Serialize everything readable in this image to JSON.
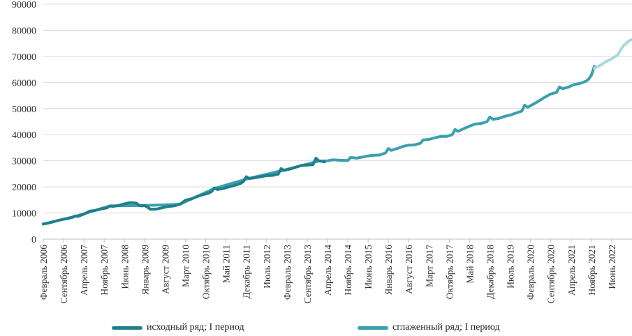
{
  "chart_data": {
    "type": "line",
    "title": "",
    "xlabel": "",
    "ylabel": "",
    "ylim": [
      0,
      90000
    ],
    "yticks": [
      "0",
      "10000",
      "20000",
      "30000",
      "40000",
      "50000",
      "60000",
      "70000",
      "80000",
      "90000"
    ],
    "x_start": "Февраль 2006",
    "x_end": "Декабрь 2022",
    "x_tick_labels": [
      {
        "label": "Февраль 2006",
        "date": "2006-02"
      },
      {
        "label": "Сентябрь 2006",
        "date": "2006-09"
      },
      {
        "label": "Апрель 2007",
        "date": "2007-04"
      },
      {
        "label": "Ноябрь 2007",
        "date": "2007-11"
      },
      {
        "label": "Июнь 2008",
        "date": "2008-06"
      },
      {
        "label": "Январь 2009",
        "date": "2009-01"
      },
      {
        "label": "Август 2009",
        "date": "2009-08"
      },
      {
        "label": "Март 2010",
        "date": "2010-03"
      },
      {
        "label": "Октябрь 2010",
        "date": "2010-10"
      },
      {
        "label": "Май 2011",
        "date": "2011-05"
      },
      {
        "label": "Декабрь 2011",
        "date": "2011-12"
      },
      {
        "label": "Июль 2012",
        "date": "2012-07"
      },
      {
        "label": "Февраль 2013",
        "date": "2013-02"
      },
      {
        "label": "Сентябрь 2013",
        "date": "2013-09"
      },
      {
        "label": "Апрель 2014",
        "date": "2014-04"
      },
      {
        "label": "Ноябрь 2014",
        "date": "2014-11"
      },
      {
        "label": "Июнь 2015",
        "date": "2015-06"
      },
      {
        "label": "Январь 2016",
        "date": "2016-01"
      },
      {
        "label": "Август 2016",
        "date": "2016-08"
      },
      {
        "label": "Март 2017",
        "date": "2017-03"
      },
      {
        "label": "Октябрь 2017",
        "date": "2017-10"
      },
      {
        "label": "Май 2018",
        "date": "2018-05"
      },
      {
        "label": "Декабрь 2018",
        "date": "2018-12"
      },
      {
        "label": "Июль 2019",
        "date": "2019-07"
      },
      {
        "label": "Февраль 2020",
        "date": "2020-02"
      },
      {
        "label": "Сентябрь 2020",
        "date": "2020-09"
      },
      {
        "label": "Апрель 2021",
        "date": "2021-04"
      },
      {
        "label": "Ноябрь 2021",
        "date": "2021-11"
      },
      {
        "label": "Июнь 2022",
        "date": "2022-06"
      }
    ],
    "grid": "horizontal",
    "legend_position": "bottom",
    "series": [
      {
        "name": "исходный ряд; I период",
        "color": "#1f7f8c",
        "points": [
          [
            "2006-02",
            5800
          ],
          [
            "2006-04",
            6200
          ],
          [
            "2006-06",
            6800
          ],
          [
            "2006-08",
            7400
          ],
          [
            "2006-10",
            7800
          ],
          [
            "2006-12",
            8300
          ],
          [
            "2007-01",
            8900
          ],
          [
            "2007-02",
            8700
          ],
          [
            "2007-04",
            9600
          ],
          [
            "2007-06",
            10700
          ],
          [
            "2007-08",
            11000
          ],
          [
            "2007-10",
            11600
          ],
          [
            "2007-12",
            12000
          ],
          [
            "2008-01",
            12700
          ],
          [
            "2008-02",
            12500
          ],
          [
            "2008-04",
            12900
          ],
          [
            "2008-06",
            13500
          ],
          [
            "2008-08",
            14000
          ],
          [
            "2008-10",
            13800
          ],
          [
            "2008-11",
            13000
          ],
          [
            "2008-12",
            12700
          ],
          [
            "2009-01",
            12900
          ],
          [
            "2009-03",
            11400
          ],
          [
            "2009-05",
            11500
          ],
          [
            "2009-07",
            12000
          ],
          [
            "2009-09",
            12500
          ],
          [
            "2009-11",
            12700
          ],
          [
            "2010-01",
            13300
          ],
          [
            "2010-02",
            14000
          ],
          [
            "2010-03",
            14900
          ],
          [
            "2010-05",
            15400
          ],
          [
            "2010-07",
            16300
          ],
          [
            "2010-09",
            17000
          ],
          [
            "2010-11",
            17600
          ],
          [
            "2010-12",
            18200
          ],
          [
            "2011-01",
            19600
          ],
          [
            "2011-02",
            19000
          ],
          [
            "2011-04",
            19400
          ],
          [
            "2011-06",
            20000
          ],
          [
            "2011-08",
            20600
          ],
          [
            "2011-10",
            21300
          ],
          [
            "2011-11",
            22000
          ],
          [
            "2011-12",
            23900
          ],
          [
            "2012-01",
            23200
          ],
          [
            "2012-03",
            23500
          ],
          [
            "2012-05",
            23900
          ],
          [
            "2012-07",
            24300
          ],
          [
            "2012-09",
            24400
          ],
          [
            "2012-11",
            24900
          ],
          [
            "2012-12",
            27000
          ],
          [
            "2013-01",
            26300
          ],
          [
            "2013-03",
            26800
          ],
          [
            "2013-05",
            27500
          ],
          [
            "2013-07",
            28200
          ],
          [
            "2013-09",
            28400
          ],
          [
            "2013-11",
            28500
          ],
          [
            "2013-12",
            31000
          ],
          [
            "2014-01",
            30000
          ],
          [
            "2014-03",
            29600
          ]
        ]
      },
      {
        "name": "сглаженный ряд; I период",
        "color": "#3aa0ae",
        "points": [
          [
            "2006-02",
            5800
          ],
          [
            "2007-01",
            8700
          ],
          [
            "2008-01",
            12700
          ],
          [
            "2009-01",
            12900
          ],
          [
            "2010-01",
            13300
          ],
          [
            "2011-01",
            19400
          ],
          [
            "2012-01",
            23300
          ],
          [
            "2013-01",
            26400
          ],
          [
            "2014-01",
            29900
          ],
          [
            "2014-04",
            30000
          ],
          [
            "2014-06",
            30400
          ],
          [
            "2014-08",
            30200
          ],
          [
            "2014-11",
            30100
          ],
          [
            "2014-12",
            31300
          ],
          [
            "2015-02",
            31000
          ],
          [
            "2015-04",
            31400
          ],
          [
            "2015-06",
            31900
          ],
          [
            "2015-08",
            32100
          ],
          [
            "2015-10",
            32200
          ],
          [
            "2015-12",
            33000
          ],
          [
            "2016-01",
            34700
          ],
          [
            "2016-02",
            34000
          ],
          [
            "2016-04",
            34700
          ],
          [
            "2016-06",
            35500
          ],
          [
            "2016-08",
            36000
          ],
          [
            "2016-10",
            36100
          ],
          [
            "2016-12",
            36700
          ],
          [
            "2017-01",
            38000
          ],
          [
            "2017-03",
            38200
          ],
          [
            "2017-05",
            38800
          ],
          [
            "2017-07",
            39300
          ],
          [
            "2017-09",
            39300
          ],
          [
            "2017-11",
            40000
          ],
          [
            "2017-12",
            42000
          ],
          [
            "2018-01",
            41300
          ],
          [
            "2018-03",
            42300
          ],
          [
            "2018-05",
            43300
          ],
          [
            "2018-07",
            44100
          ],
          [
            "2018-09",
            44300
          ],
          [
            "2018-11",
            45000
          ],
          [
            "2018-12",
            46800
          ],
          [
            "2019-01",
            45900
          ],
          [
            "2019-03",
            46200
          ],
          [
            "2019-05",
            47000
          ],
          [
            "2019-07",
            47500
          ],
          [
            "2019-09",
            48300
          ],
          [
            "2019-11",
            49000
          ],
          [
            "2019-12",
            51300
          ],
          [
            "2020-01",
            50500
          ],
          [
            "2020-03",
            51700
          ],
          [
            "2020-05",
            53000
          ],
          [
            "2020-07",
            54400
          ],
          [
            "2020-09",
            55600
          ],
          [
            "2020-11",
            56200
          ],
          [
            "2020-12",
            58300
          ],
          [
            "2021-01",
            57600
          ],
          [
            "2021-03",
            58200
          ],
          [
            "2021-05",
            59200
          ],
          [
            "2021-07",
            59600
          ],
          [
            "2021-09",
            60400
          ],
          [
            "2021-10",
            61200
          ],
          [
            "2021-11",
            62800
          ],
          [
            "2021-12",
            66200
          ]
        ]
      },
      {
        "name": "",
        "color": "#a9d8e0",
        "points": [
          [
            "2021-12",
            65500
          ],
          [
            "2022-02",
            66500
          ],
          [
            "2022-04",
            68000
          ],
          [
            "2022-06",
            69000
          ],
          [
            "2022-08",
            70500
          ],
          [
            "2022-10",
            74000
          ],
          [
            "2022-12",
            76000
          ],
          [
            "2023-01",
            76500
          ]
        ]
      }
    ]
  },
  "legend": {
    "item1": "исходный ряд; I период",
    "item2": "сглаженный ряд; I период",
    "item1_color": "#1f7f8c",
    "item2_color": "#3aa0ae"
  }
}
